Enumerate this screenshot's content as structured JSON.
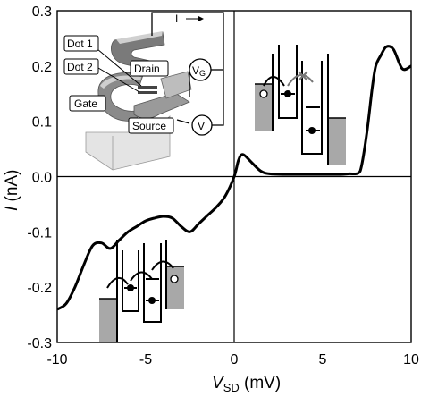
{
  "chart_data": {
    "type": "line",
    "xlabel": {
      "main": "V",
      "sub": "SD",
      "unit": " (mV)"
    },
    "ylabel": {
      "main": "I",
      "unit": " (nA)"
    },
    "xlim": [
      -10,
      10
    ],
    "ylim": [
      -0.3,
      0.3
    ],
    "x_ticks": [
      "-10",
      "-5",
      "0",
      "5",
      "10"
    ],
    "x_tick_values": [
      -10,
      -5,
      0,
      5,
      10
    ],
    "y_ticks": [
      "-0.3",
      "-0.2",
      "-0.1",
      "0.0",
      "0.1",
      "0.2",
      "0.3"
    ],
    "y_tick_values": [
      -0.3,
      -0.2,
      -0.1,
      0.0,
      0.1,
      0.2,
      0.3
    ],
    "grid": false,
    "reference_lines": {
      "x": 0,
      "y": 0
    },
    "series": [
      {
        "color": "#000000",
        "x": [
          -10.0,
          -9.5,
          -9.0,
          -8.5,
          -8.0,
          -7.5,
          -7.0,
          -6.5,
          -6.0,
          -5.5,
          -5.0,
          -4.5,
          -4.0,
          -3.5,
          -3.0,
          -2.5,
          -2.0,
          -1.5,
          -1.0,
          -0.5,
          0.0,
          0.25,
          0.5,
          1.0,
          1.5,
          2.0,
          3.0,
          4.0,
          5.0,
          6.0,
          6.5,
          7.0,
          7.2,
          7.5,
          7.8,
          8.0,
          8.3,
          8.6,
          9.0,
          9.5,
          10.0
        ],
        "y": [
          -0.24,
          -0.23,
          -0.2,
          -0.16,
          -0.125,
          -0.12,
          -0.13,
          -0.115,
          -0.1,
          -0.09,
          -0.08,
          -0.075,
          -0.072,
          -0.075,
          -0.09,
          -0.1,
          -0.085,
          -0.07,
          -0.055,
          -0.035,
          0.0,
          0.03,
          0.04,
          0.025,
          0.01,
          0.005,
          0.004,
          0.004,
          0.004,
          0.004,
          0.005,
          0.006,
          0.02,
          0.08,
          0.16,
          0.2,
          0.22,
          0.235,
          0.23,
          0.195,
          0.2
        ]
      }
    ]
  },
  "inset_top": {
    "labels": {
      "dot1": "Dot 1",
      "dot2": "Dot 2",
      "drain": "Drain",
      "gate": "Gate",
      "source": "Source",
      "current": "I",
      "vg_main": "V",
      "vg_sub": "G",
      "v": "V"
    },
    "colors": {
      "metal_light": "#c8c8c8",
      "metal_dark": "#7a7a7a",
      "substrate": "#e4e4e4"
    }
  },
  "energy_diagrams": {
    "fill_color": "#a8a8a8",
    "arrow_color": "#000000",
    "blocked_marker_color": "#777777",
    "state_icons": [
      "spin-up-electron",
      "spin-down-electron",
      "hole"
    ]
  }
}
